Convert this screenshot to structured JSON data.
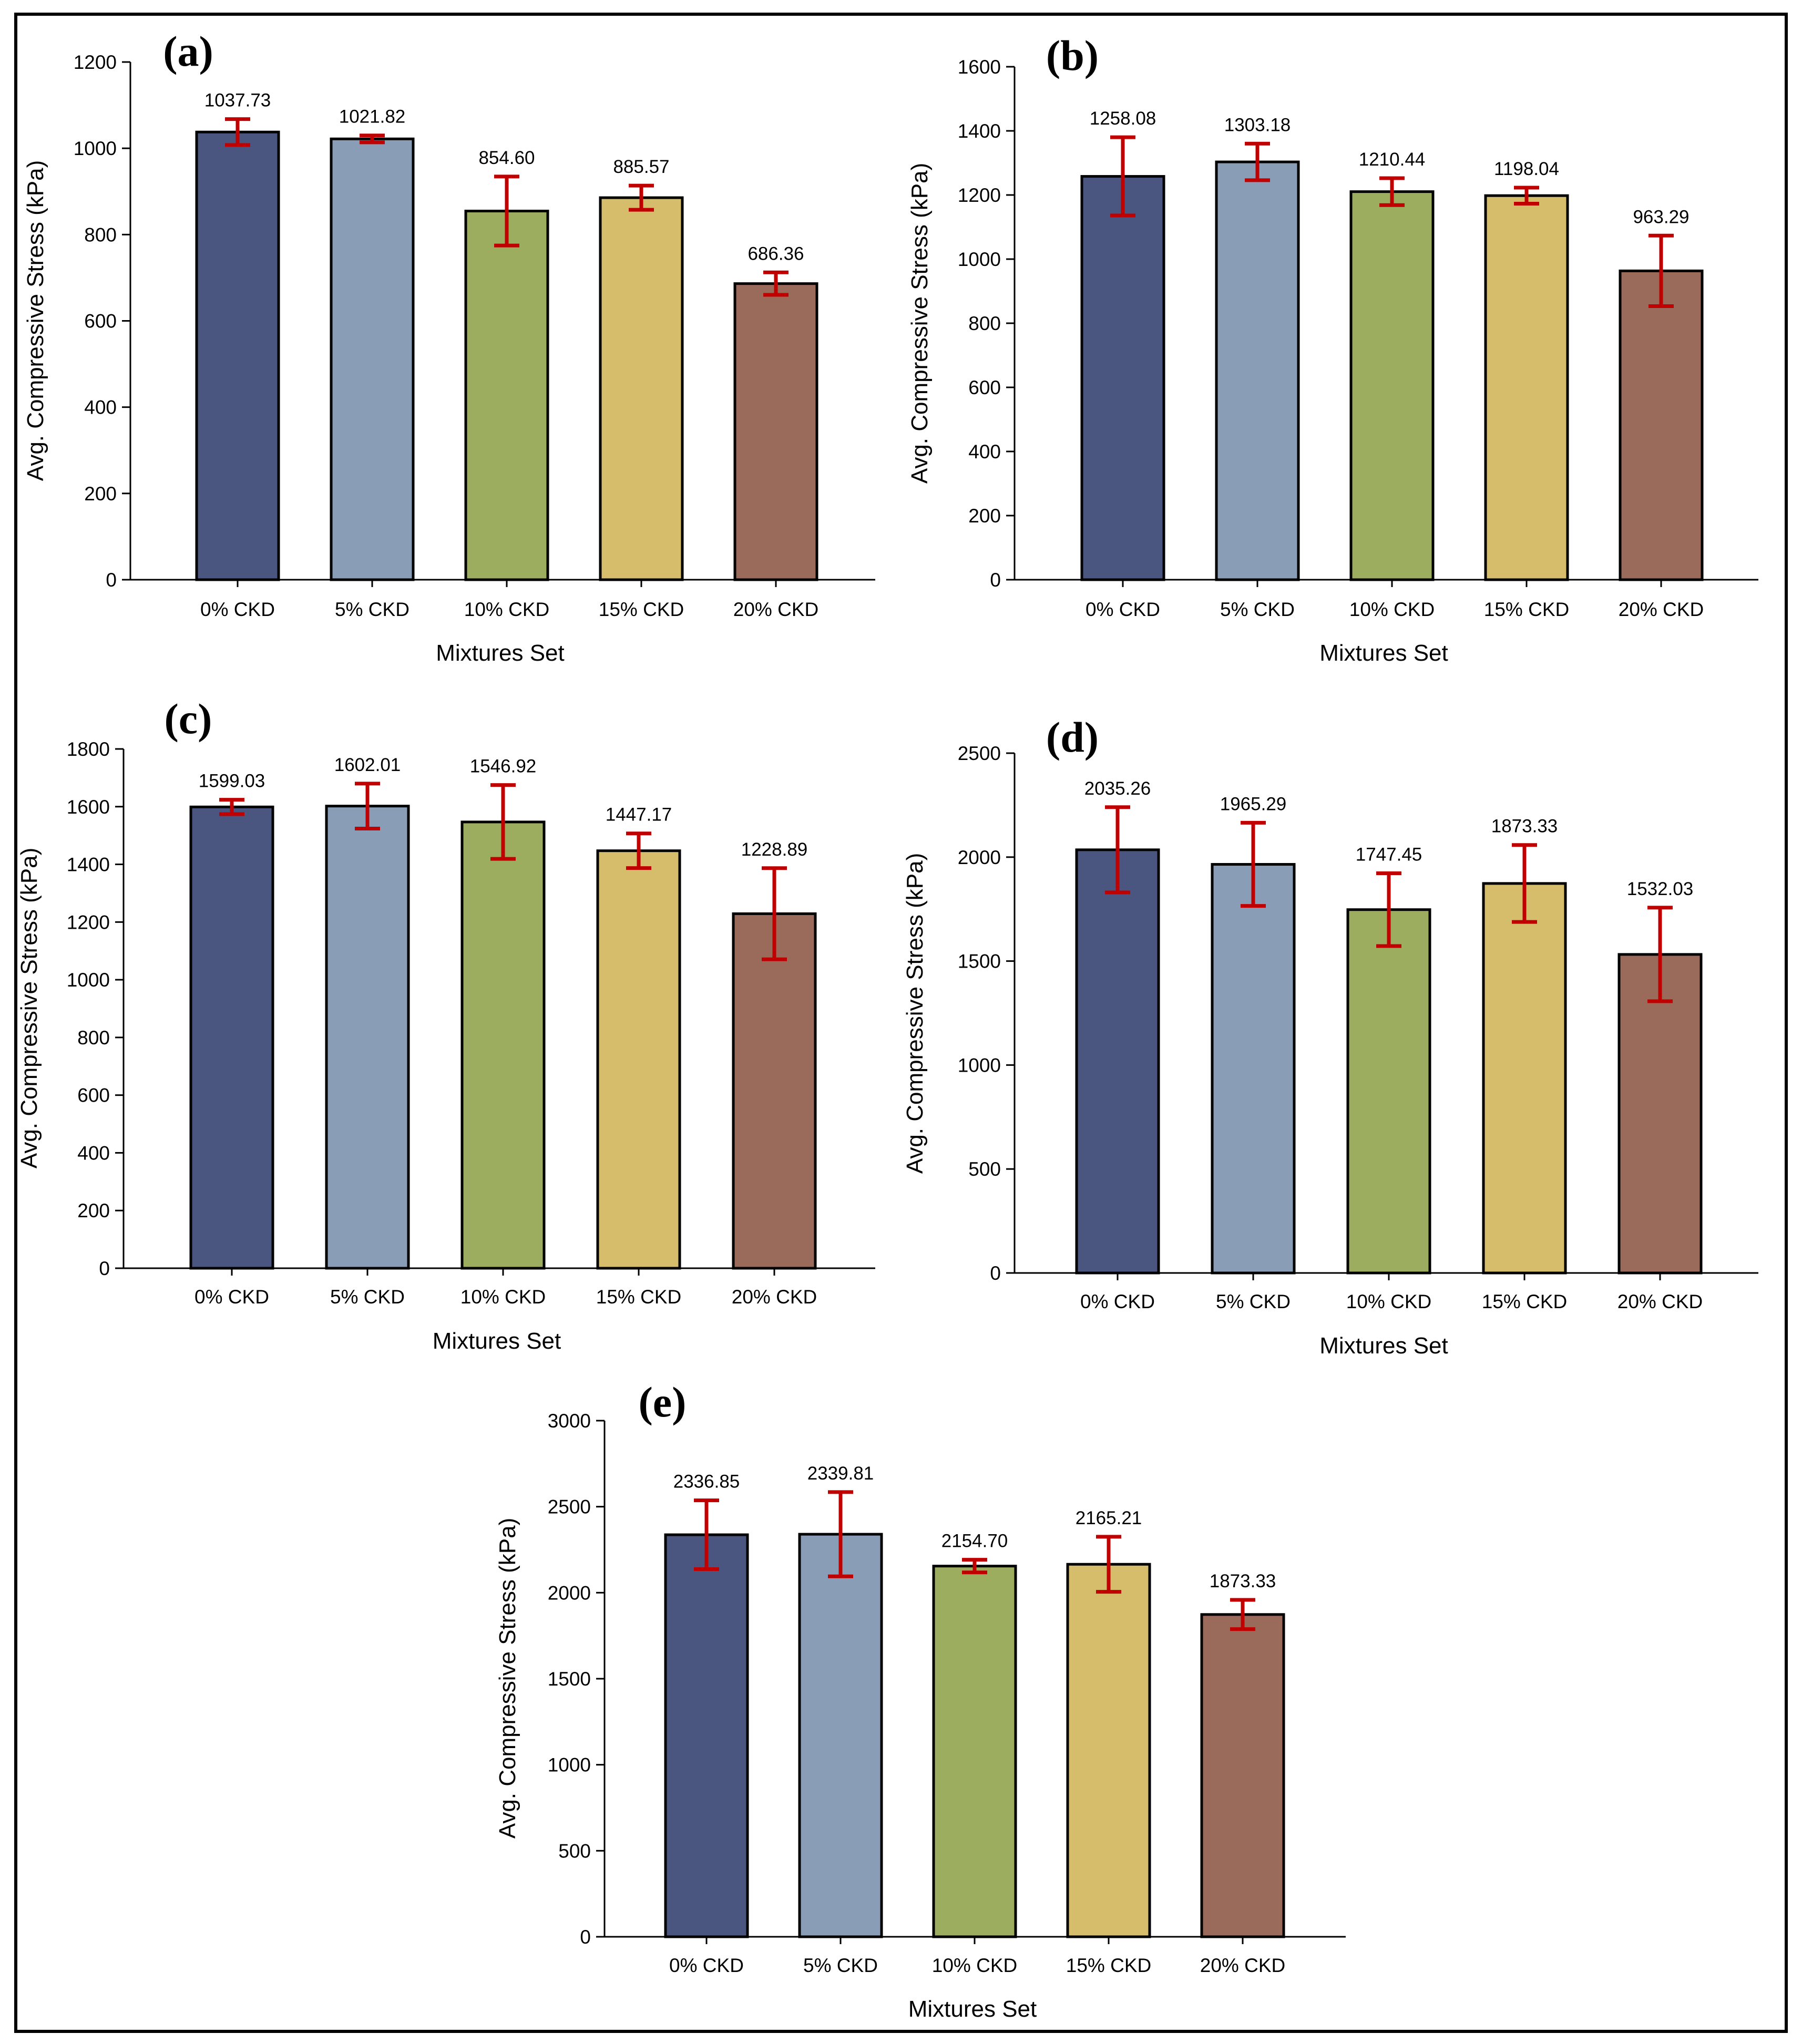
{
  "colors": {
    "bars": [
      "#4a5680",
      "#8a9db7",
      "#9cad5f",
      "#d6bd6b",
      "#9a6a5a"
    ],
    "error_bar": "#c00000",
    "axis": "#000000",
    "background": "#ffffff"
  },
  "chart_data": [
    {
      "type": "bar",
      "panel_label": "(a)",
      "categories": [
        "0% CKD",
        "5% CKD",
        "10% CKD",
        "15% CKD",
        "20% CKD"
      ],
      "values": [
        1037.73,
        1021.82,
        854.6,
        885.57,
        686.36
      ],
      "value_labels": [
        "1037.73",
        "1021.82",
        "854.60",
        "885.57",
        "686.36"
      ],
      "error": [
        30,
        8,
        80,
        28,
        26
      ],
      "xlabel": "Mixtures Set",
      "ylabel": "Avg. Compressive Stress (kPa)",
      "ylim": [
        0,
        1200
      ],
      "yticks": [
        0,
        200,
        400,
        600,
        800,
        1000,
        1200
      ]
    },
    {
      "type": "bar",
      "panel_label": "(b)",
      "categories": [
        "0% CKD",
        "5% CKD",
        "10% CKD",
        "15% CKD",
        "20% CKD"
      ],
      "values": [
        1258.08,
        1303.18,
        1210.44,
        1198.04,
        963.29
      ],
      "value_labels": [
        "1258.08",
        "1303.18",
        "1210.44",
        "1198.04",
        "963.29"
      ],
      "error": [
        122,
        57,
        42,
        25,
        110
      ],
      "xlabel": "Mixtures Set",
      "ylabel": "Avg. Compressive Stress (kPa)",
      "ylim": [
        0,
        1600
      ],
      "yticks": [
        0,
        200,
        400,
        600,
        800,
        1000,
        1200,
        1400,
        1600
      ]
    },
    {
      "type": "bar",
      "panel_label": "(c)",
      "categories": [
        "0% CKD",
        "5% CKD",
        "10% CKD",
        "15% CKD",
        "20% CKD"
      ],
      "values": [
        1599.03,
        1602.01,
        1546.92,
        1447.17,
        1228.89
      ],
      "value_labels": [
        "1599.03",
        "1602.01",
        "1546.92",
        "1447.17",
        "1228.89"
      ],
      "error": [
        25,
        78,
        128,
        60,
        158
      ],
      "xlabel": "Mixtures Set",
      "ylabel": "Avg. Compressive Stress (kPa)",
      "ylim": [
        0,
        1800
      ],
      "yticks": [
        0,
        200,
        400,
        600,
        800,
        1000,
        1200,
        1400,
        1600,
        1800
      ]
    },
    {
      "type": "bar",
      "panel_label": "(d)",
      "categories": [
        "0% CKD",
        "5% CKD",
        "10% CKD",
        "15% CKD",
        "20% CKD"
      ],
      "values": [
        2035.26,
        1965.29,
        1747.45,
        1873.33,
        1532.03
      ],
      "value_labels": [
        "2035.26",
        "1965.29",
        "1747.45",
        "1873.33",
        "1532.03"
      ],
      "error": [
        205,
        200,
        175,
        185,
        225
      ],
      "xlabel": "Mixtures Set",
      "ylabel": "Avg. Compressive Stress (kPa)",
      "ylim": [
        0,
        2500
      ],
      "yticks": [
        0,
        500,
        1000,
        1500,
        2000,
        2500
      ]
    },
    {
      "type": "bar",
      "panel_label": "(e)",
      "categories": [
        "0% CKD",
        "5% CKD",
        "10% CKD",
        "15% CKD",
        "20% CKD"
      ],
      "values": [
        2336.85,
        2339.81,
        2154.7,
        2165.21,
        1873.33
      ],
      "value_labels": [
        "2336.85",
        "2339.81",
        "2154.70",
        "2165.21",
        "1873.33"
      ],
      "error": [
        200,
        245,
        37,
        160,
        85
      ],
      "xlabel": "Mixtures Set",
      "ylabel": "Avg. Compressive Stress (kPa)",
      "ylim": [
        0,
        3000
      ],
      "yticks": [
        0,
        500,
        1000,
        1500,
        2000,
        2500,
        3000
      ]
    }
  ]
}
